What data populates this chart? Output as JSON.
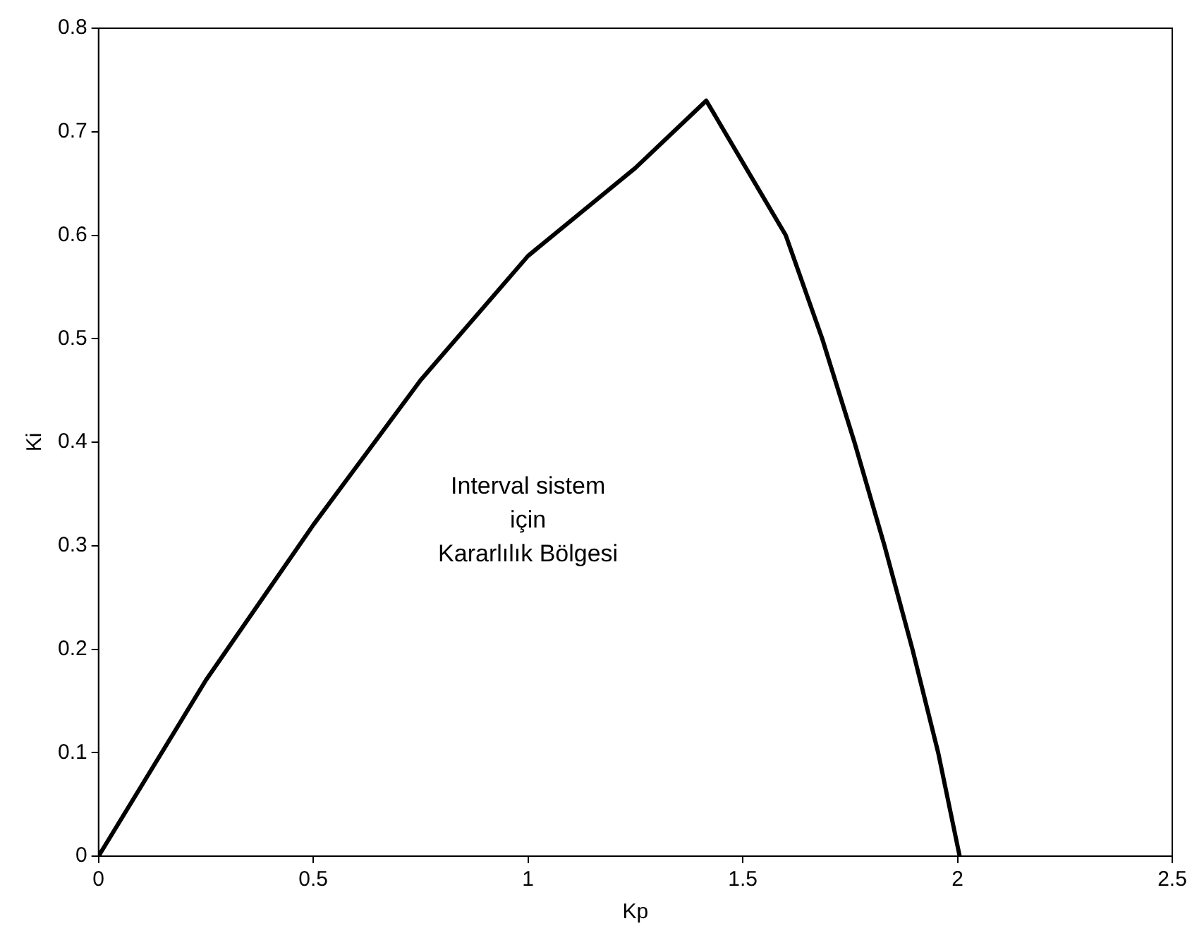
{
  "chart_data": {
    "type": "line",
    "xlabel": "Kp",
    "ylabel": "Ki",
    "xlim": [
      0,
      2.5
    ],
    "xticks": [
      0,
      0.5,
      1,
      1.5,
      2,
      2.5
    ],
    "ylim": [
      0,
      0.8
    ],
    "yticks": [
      0,
      0.1,
      0.2,
      0.3,
      0.4,
      0.5,
      0.6,
      0.7,
      0.8
    ],
    "grid": false,
    "legend": false,
    "marker": "none",
    "line_style": "solid",
    "annotations": [
      "Interval sistem",
      "için",
      "Kararlılık Bölgesi"
    ],
    "series": [
      {
        "color": "#000000",
        "x": [
          0,
          0.25,
          0.5,
          0.75,
          1,
          1.25,
          1.415,
          1.6,
          1.685,
          1.76,
          1.83,
          1.895,
          1.955,
          2.005
        ],
        "values": [
          0,
          0.17,
          0.32,
          0.46,
          0.58,
          0.665,
          0.73,
          0.6,
          0.5,
          0.4,
          0.3,
          0.2,
          0.1,
          0
        ]
      }
    ]
  }
}
